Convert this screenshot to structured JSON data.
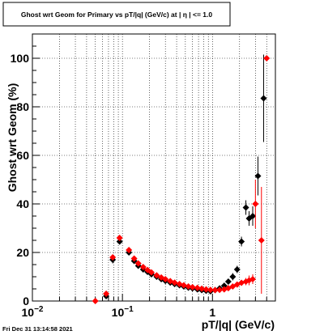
{
  "title": "Ghost wrt Geom for Primary vs pT/|q| (GeV/c) at |  η  | <= 1.0",
  "footer": "Fri Dec 31 13:14:58 2021",
  "colors": {
    "series_black": "#000000",
    "series_red": "#ff0000",
    "grid": "#000000"
  },
  "chart_data": {
    "type": "scatter",
    "title": "Ghost wrt Geom for Primary vs pT/|q| (GeV/c) at |  η  | <= 1.0",
    "xlabel": "pT/|q| (GeV/c)",
    "ylabel": "Ghost wrt Geom (%)",
    "xscale": "log",
    "xlim": [
      0.01,
      5.0
    ],
    "ylim": [
      0,
      110
    ],
    "grid": true,
    "x_ticks": [
      {
        "value": 0.01,
        "label": "10",
        "sup": "−2"
      },
      {
        "value": 0.1,
        "label": "10",
        "sup": "−1"
      },
      {
        "value": 1,
        "label": "1",
        "sup": ""
      }
    ],
    "y_ticks": [
      0,
      20,
      40,
      60,
      80,
      100
    ],
    "series": [
      {
        "color": "#000000",
        "points": [
          {
            "x": 0.066,
            "y": 2,
            "err": 0
          },
          {
            "x": 0.078,
            "y": 17,
            "err": 1.5
          },
          {
            "x": 0.093,
            "y": 24.5,
            "err": 1
          },
          {
            "x": 0.118,
            "y": 20,
            "err": 1
          },
          {
            "x": 0.135,
            "y": 16.5,
            "err": 0.5
          },
          {
            "x": 0.15,
            "y": 14.5,
            "err": 0.5
          },
          {
            "x": 0.17,
            "y": 13,
            "err": 0.5
          },
          {
            "x": 0.19,
            "y": 12,
            "err": 0.5
          },
          {
            "x": 0.21,
            "y": 11,
            "err": 0.5
          },
          {
            "x": 0.24,
            "y": 10,
            "err": 0.5
          },
          {
            "x": 0.27,
            "y": 9,
            "err": 0.5
          },
          {
            "x": 0.3,
            "y": 8.3,
            "err": 0.5
          },
          {
            "x": 0.34,
            "y": 7.6,
            "err": 0.5
          },
          {
            "x": 0.38,
            "y": 7,
            "err": 0.5
          },
          {
            "x": 0.43,
            "y": 6.5,
            "err": 0.5
          },
          {
            "x": 0.48,
            "y": 6,
            "err": 0.5
          },
          {
            "x": 0.54,
            "y": 5.5,
            "err": 0.5
          },
          {
            "x": 0.6,
            "y": 5.2,
            "err": 0.5
          },
          {
            "x": 0.68,
            "y": 4.8,
            "err": 0.5
          },
          {
            "x": 0.76,
            "y": 4.5,
            "err": 0.5
          },
          {
            "x": 0.85,
            "y": 4.2,
            "err": 0.5
          },
          {
            "x": 0.95,
            "y": 4,
            "err": 0.5
          },
          {
            "x": 1.07,
            "y": 4.5,
            "err": 0.5
          },
          {
            "x": 1.2,
            "y": 5.2,
            "err": 0.5
          },
          {
            "x": 1.35,
            "y": 6.3,
            "err": 0.8
          },
          {
            "x": 1.5,
            "y": 8,
            "err": 1
          },
          {
            "x": 1.68,
            "y": 10,
            "err": 1.5
          },
          {
            "x": 1.88,
            "y": 13,
            "err": 1.5
          },
          {
            "x": 2.1,
            "y": 24.5,
            "err": 2
          },
          {
            "x": 2.35,
            "y": 38.5,
            "err": 3
          },
          {
            "x": 2.55,
            "y": 34,
            "err": 3
          },
          {
            "x": 2.8,
            "y": 35,
            "err": 4
          },
          {
            "x": 3.2,
            "y": 51.5,
            "err": 8
          },
          {
            "x": 3.7,
            "y": 83.5,
            "err": 18
          }
        ]
      },
      {
        "color": "#ff0000",
        "points": [
          {
            "x": 0.05,
            "y": 0,
            "err": 0
          },
          {
            "x": 0.066,
            "y": 3,
            "err": 0.5
          },
          {
            "x": 0.078,
            "y": 18,
            "err": 1
          },
          {
            "x": 0.093,
            "y": 26,
            "err": 1
          },
          {
            "x": 0.118,
            "y": 21,
            "err": 1
          },
          {
            "x": 0.135,
            "y": 17.5,
            "err": 0.5
          },
          {
            "x": 0.15,
            "y": 15.5,
            "err": 0.5
          },
          {
            "x": 0.17,
            "y": 14,
            "err": 0.5
          },
          {
            "x": 0.19,
            "y": 12.8,
            "err": 0.5
          },
          {
            "x": 0.21,
            "y": 11.8,
            "err": 0.5
          },
          {
            "x": 0.24,
            "y": 10.6,
            "err": 0.5
          },
          {
            "x": 0.27,
            "y": 9.7,
            "err": 0.5
          },
          {
            "x": 0.3,
            "y": 9,
            "err": 0.5
          },
          {
            "x": 0.34,
            "y": 8.2,
            "err": 0.5
          },
          {
            "x": 0.38,
            "y": 7.6,
            "err": 0.5
          },
          {
            "x": 0.43,
            "y": 7,
            "err": 0.5
          },
          {
            "x": 0.48,
            "y": 6.5,
            "err": 0.5
          },
          {
            "x": 0.54,
            "y": 6,
            "err": 0.5
          },
          {
            "x": 0.6,
            "y": 5.7,
            "err": 0.5
          },
          {
            "x": 0.68,
            "y": 5.4,
            "err": 0.5
          },
          {
            "x": 0.76,
            "y": 5.1,
            "err": 0.5
          },
          {
            "x": 0.85,
            "y": 4.8,
            "err": 0.5
          },
          {
            "x": 0.95,
            "y": 4.6,
            "err": 0.5
          },
          {
            "x": 1.07,
            "y": 4.5,
            "err": 0.5
          },
          {
            "x": 1.2,
            "y": 4.6,
            "err": 0.5
          },
          {
            "x": 1.35,
            "y": 4.8,
            "err": 0.5
          },
          {
            "x": 1.5,
            "y": 5.3,
            "err": 0.5
          },
          {
            "x": 1.68,
            "y": 6,
            "err": 0.8
          },
          {
            "x": 1.88,
            "y": 6.8,
            "err": 1
          },
          {
            "x": 2.1,
            "y": 7.5,
            "err": 1
          },
          {
            "x": 2.35,
            "y": 8,
            "err": 1.5
          },
          {
            "x": 2.55,
            "y": 8.5,
            "err": 2
          },
          {
            "x": 2.8,
            "y": 9,
            "err": 2
          },
          {
            "x": 3.0,
            "y": 40,
            "err": 10
          },
          {
            "x": 3.5,
            "y": 25,
            "err": 22
          },
          {
            "x": 4.0,
            "y": 100,
            "err": 0
          }
        ]
      }
    ]
  }
}
